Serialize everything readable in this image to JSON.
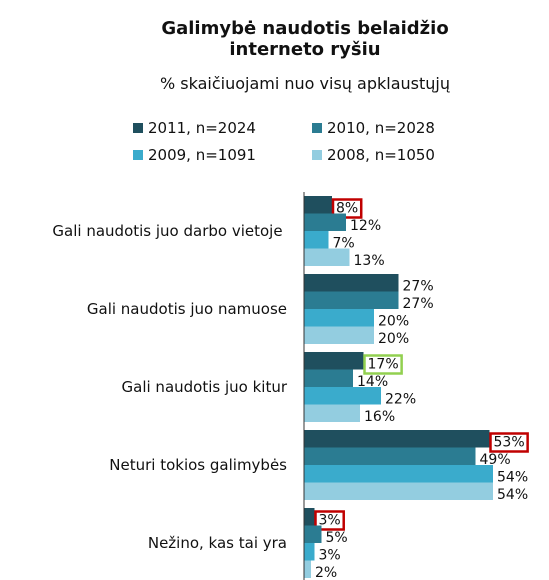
{
  "chart_data": {
    "type": "bar",
    "orientation": "horizontal",
    "title": "Galimybė naudotis belaidžio interneto ryšiu",
    "subtitle": "% skaičiuojami nuo visų apklaustųjų",
    "categories": [
      "Gali naudotis juo darbo vietoje",
      "Gali naudotis juo namuose",
      "Gali naudotis juo kitur",
      "Neturi tokios galimybės",
      "Nežino, kas tai yra"
    ],
    "series": [
      {
        "name": "2011, n=2024",
        "color": "#1f4f5e",
        "values": [
          8,
          27,
          17,
          53,
          3
        ],
        "value_labels": [
          "8%",
          "27%",
          "17%",
          "53%",
          "3%"
        ]
      },
      {
        "name": "2010, n=2028",
        "color": "#2b7c92",
        "values": [
          12,
          27,
          14,
          49,
          5
        ],
        "value_labels": [
          "12%",
          "27%",
          "14%",
          "49%",
          "5%"
        ]
      },
      {
        "name": "2009, n=1091",
        "color": "#3aabcc",
        "values": [
          7,
          20,
          22,
          54,
          3
        ],
        "value_labels": [
          "7%",
          "20%",
          "22%",
          "54%",
          "3%"
        ]
      },
      {
        "name": "2008, n=1050",
        "color": "#93cde0",
        "values": [
          13,
          20,
          16,
          54,
          2
        ],
        "value_labels": [
          "13%",
          "20%",
          "16%",
          "54%",
          "2%"
        ]
      }
    ]
  }
}
